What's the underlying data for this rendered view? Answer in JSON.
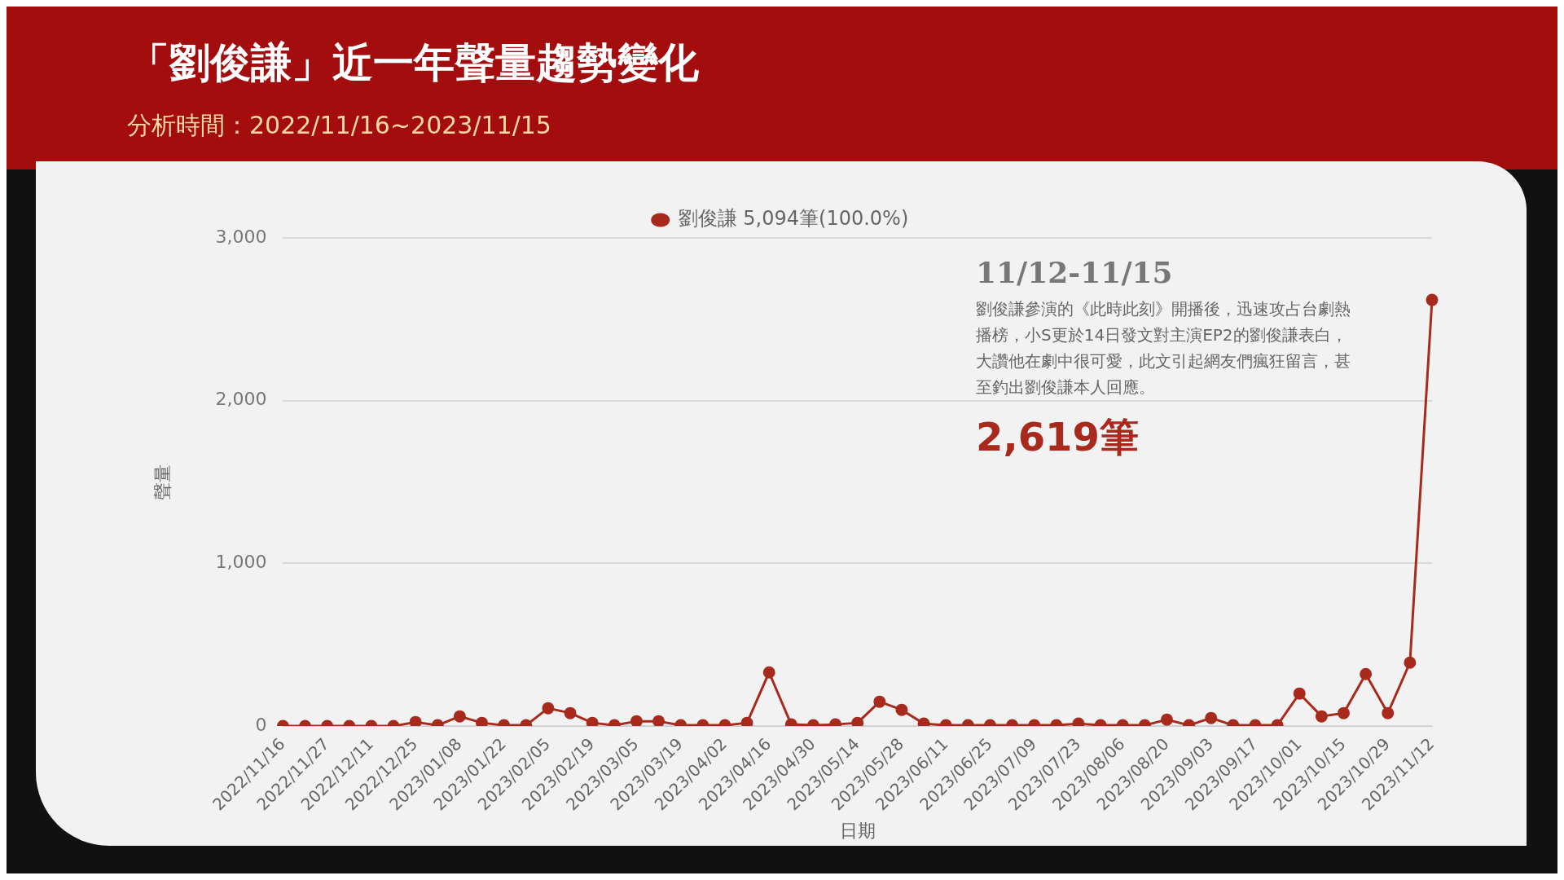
{
  "chart_data": {
    "type": "line",
    "title": "「劉俊謙」近一年聲量趨勢變化",
    "subtitle": "分析時間：2022/11/16~2023/11/15",
    "xlabel": "日期",
    "ylabel": "聲量",
    "categories": [
      "2022/11/16",
      null,
      "2022/11/27",
      null,
      "2022/12/11",
      null,
      "2022/12/25",
      null,
      "2023/01/08",
      null,
      "2023/01/22",
      null,
      "2023/02/05",
      null,
      "2023/02/19",
      null,
      "2023/03/05",
      null,
      "2023/03/19",
      null,
      "2023/04/02",
      null,
      "2023/04/16",
      null,
      "2023/04/30",
      null,
      "2023/05/14",
      null,
      "2023/05/28",
      null,
      "2023/06/11",
      null,
      "2023/06/25",
      null,
      "2023/07/09",
      null,
      "2023/07/23",
      null,
      "2023/08/06",
      null,
      "2023/08/20",
      null,
      "2023/09/03",
      null,
      "2023/09/17",
      null,
      "2023/10/01",
      null,
      "2023/10/15",
      null,
      "2023/10/29",
      null,
      "2023/11/12"
    ],
    "series": [
      {
        "name": "劉俊謙 5,094筆(100.0%)",
        "color": "#a82a1c",
        "values": [
          0,
          0,
          0,
          0,
          0,
          0,
          25,
          5,
          60,
          20,
          5,
          5,
          110,
          80,
          20,
          5,
          30,
          30,
          5,
          5,
          5,
          20,
          330,
          10,
          5,
          10,
          20,
          150,
          100,
          15,
          5,
          5,
          5,
          5,
          5,
          5,
          15,
          5,
          5,
          5,
          40,
          5,
          50,
          5,
          5,
          5,
          200,
          60,
          80,
          320,
          80,
          390,
          2619
        ]
      }
    ],
    "ylim": [
      0,
      3000
    ],
    "yticks": [
      {
        "value": 0,
        "label": "0"
      },
      {
        "value": 1000,
        "label": "1,000"
      },
      {
        "value": 2000,
        "label": "2,000"
      },
      {
        "value": 3000,
        "label": "3,000"
      }
    ],
    "grid": "y",
    "legend": "top",
    "marker": "circle",
    "line_style": "solid",
    "annotations": [
      "11/12-11/15",
      "劉俊謙參演的《此時此刻》開播後，迅速攻占台劇熱播榜，小S更於14日發文對主演EP2的劉俊謙表白，大讚他在劇中很可愛，此文引起網友們瘋狂留言，甚至釣出劉俊謙本人回應。",
      "2,619筆"
    ]
  }
}
